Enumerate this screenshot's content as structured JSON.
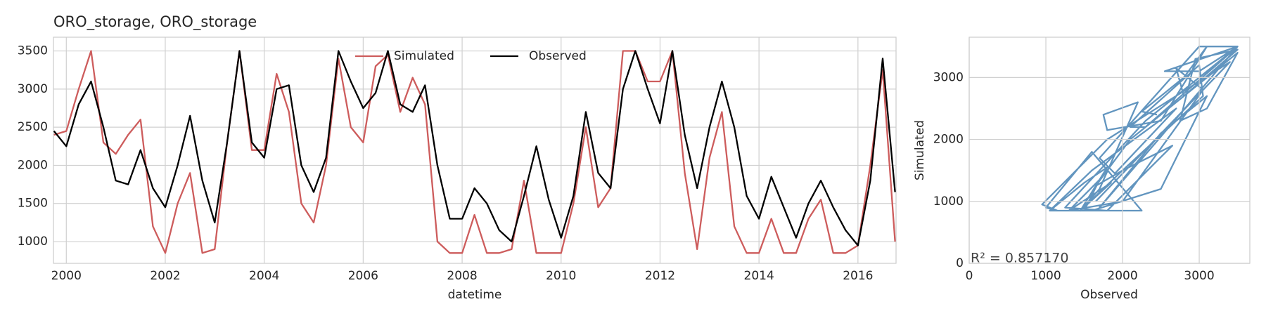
{
  "chart_data": [
    {
      "type": "line",
      "title": "ORO_storage, ORO_storage",
      "xlabel": "datetime",
      "x": [
        1999.75,
        2000.0,
        2000.25,
        2000.5,
        2000.75,
        2001.0,
        2001.25,
        2001.5,
        2001.75,
        2002.0,
        2002.25,
        2002.5,
        2002.75,
        2003.0,
        2003.25,
        2003.5,
        2003.75,
        2004.0,
        2004.25,
        2004.5,
        2004.75,
        2005.0,
        2005.25,
        2005.5,
        2005.75,
        2006.0,
        2006.25,
        2006.5,
        2006.75,
        2007.0,
        2007.25,
        2007.5,
        2007.75,
        2008.0,
        2008.25,
        2008.5,
        2008.75,
        2009.0,
        2009.25,
        2009.5,
        2009.75,
        2010.0,
        2010.25,
        2010.5,
        2010.75,
        2011.0,
        2011.25,
        2011.5,
        2011.75,
        2012.0,
        2012.25,
        2012.5,
        2012.75,
        2013.0,
        2013.25,
        2013.5,
        2013.75,
        2014.0,
        2014.25,
        2014.5,
        2014.75,
        2015.0,
        2015.25,
        2015.5,
        2015.75,
        2016.0,
        2016.25,
        2016.5,
        2016.75
      ],
      "series": [
        {
          "name": "Simulated",
          "color": "#cd5c5c",
          "values": [
            2400,
            2450,
            3000,
            3500,
            2300,
            2150,
            2400,
            2600,
            1200,
            850,
            1500,
            1900,
            850,
            900,
            2300,
            3500,
            2200,
            2200,
            3200,
            2700,
            1500,
            1250,
            2000,
            3400,
            2500,
            2300,
            3300,
            3450,
            2700,
            3150,
            2800,
            1000,
            850,
            850,
            1350,
            850,
            850,
            900,
            1800,
            850,
            850,
            850,
            1500,
            2500,
            1450,
            1700,
            3500,
            3500,
            3100,
            3100,
            3500,
            1900,
            900,
            2100,
            2700,
            1200,
            850,
            850,
            1300,
            850,
            850,
            1300,
            1550,
            850,
            850,
            950,
            2000,
            3250,
            1000
          ]
        },
        {
          "name": "Observed",
          "color": "#000000",
          "values": [
            2450,
            2250,
            2800,
            3100,
            2500,
            1800,
            1750,
            2200,
            1700,
            1450,
            2000,
            2650,
            1800,
            1250,
            2300,
            3500,
            2300,
            2100,
            3000,
            3050,
            2000,
            1650,
            2100,
            3500,
            3100,
            2750,
            2950,
            3500,
            2800,
            2700,
            3050,
            2000,
            1300,
            1300,
            1700,
            1500,
            1150,
            1000,
            1600,
            2250,
            1550,
            1050,
            1600,
            2700,
            1900,
            1700,
            3000,
            3500,
            3000,
            2550,
            3500,
            2400,
            1700,
            2500,
            3100,
            2500,
            1600,
            1300,
            1850,
            1450,
            1050,
            1500,
            1800,
            1450,
            1150,
            950,
            1800,
            3400,
            1650
          ]
        }
      ],
      "xlim": [
        1999.74,
        2016.77
      ],
      "xticks": [
        2000,
        2002,
        2004,
        2006,
        2008,
        2010,
        2012,
        2014,
        2016
      ],
      "ylim": [
        715,
        3680
      ],
      "yticks": [
        1000,
        1500,
        2000,
        2500,
        3000,
        3500
      ],
      "grid": true,
      "legend": "upper center"
    },
    {
      "type": "scatter",
      "xlabel": "Observed",
      "ylabel": "Simulated",
      "annotation": "R² = 0.857170",
      "color": "#4682b4",
      "x": [
        2450,
        2250,
        2800,
        3100,
        2500,
        1800,
        1750,
        2200,
        1700,
        1450,
        2000,
        2650,
        1800,
        1250,
        2300,
        3500,
        2300,
        2100,
        3000,
        3050,
        2000,
        1650,
        2100,
        3500,
        3100,
        2750,
        2950,
        3500,
        2800,
        2700,
        3050,
        2000,
        1300,
        1300,
        1700,
        1500,
        1150,
        1000,
        1600,
        2250,
        1550,
        1050,
        1600,
        2700,
        1900,
        1700,
        3000,
        3500,
        3000,
        2550,
        3500,
        2400,
        1700,
        2500,
        3100,
        2500,
        1600,
        1300,
        1850,
        1450,
        1050,
        1500,
        1800,
        1450,
        1150,
        950,
        1800,
        3400,
        1650
      ],
      "y": [
        2400,
        2450,
        3000,
        3500,
        2300,
        2150,
        2400,
        2600,
        1200,
        850,
        1500,
        1900,
        850,
        900,
        2300,
        3500,
        2200,
        2200,
        3200,
        2700,
        1500,
        1250,
        2000,
        3400,
        2500,
        2300,
        3300,
        3450,
        2700,
        3150,
        2800,
        1000,
        850,
        850,
        1350,
        850,
        850,
        900,
        1800,
        850,
        850,
        850,
        1500,
        2500,
        1450,
        1700,
        3500,
        3500,
        3100,
        3100,
        3500,
        1900,
        900,
        2100,
        2700,
        1200,
        850,
        850,
        1300,
        850,
        850,
        1300,
        1550,
        850,
        850,
        950,
        2000,
        3250,
        1000
      ],
      "xlim": [
        0,
        3660
      ],
      "xticks": [
        0,
        1000,
        2000,
        3000
      ],
      "ylim": [
        0,
        3650
      ],
      "yticks": [
        0,
        1000,
        2000,
        3000
      ],
      "grid": true
    }
  ]
}
